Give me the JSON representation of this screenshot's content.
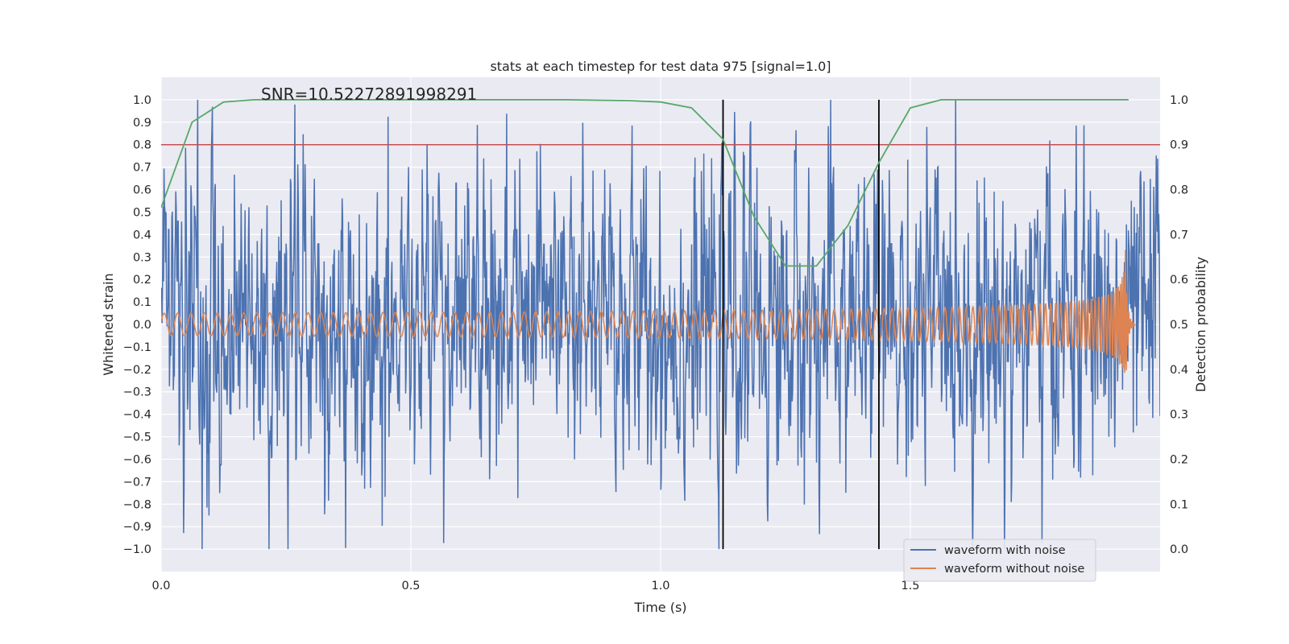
{
  "chart_data": {
    "type": "line",
    "title": "stats at each timestep for test data 975 [signal=1.0]",
    "xlabel": "Time (s)",
    "ylabel_left": "Whitened strain",
    "ylabel_right": "Detection probability",
    "xlim": [
      0.0,
      2.0
    ],
    "ylim_left": [
      -1.1,
      1.1
    ],
    "ylim_right": [
      -0.05,
      1.05
    ],
    "x_ticks": [
      "0.0",
      "0.5",
      "1.0",
      "1.5"
    ],
    "y_left_ticks": [
      "−1.0",
      "−0.9",
      "−0.8",
      "−0.7",
      "−0.6",
      "−0.5",
      "−0.4",
      "−0.3",
      "−0.2",
      "−0.1",
      "0.0",
      "0.1",
      "0.2",
      "0.3",
      "0.4",
      "0.5",
      "0.6",
      "0.7",
      "0.8",
      "0.9",
      "1.0"
    ],
    "y_right_ticks": [
      "0.0",
      "0.1",
      "0.2",
      "0.3",
      "0.4",
      "0.5",
      "0.6",
      "0.7",
      "0.8",
      "0.9",
      "1.0"
    ],
    "annotation": "SNR=10.52272891998291",
    "grid": true,
    "legend_position": "bottom-right",
    "threshold_line": {
      "axis": "right",
      "value": 0.9,
      "color": "#c44e52"
    },
    "vertical_markers": [
      1.125,
      1.437
    ],
    "series": [
      {
        "name": "waveform with noise",
        "axis": "left",
        "color": "#4c72b0",
        "kind": "noise",
        "t_range": [
          0.0,
          2.0
        ],
        "amplitude_range": [
          -1.0,
          1.0
        ],
        "samples": 2048
      },
      {
        "name": "waveform without noise",
        "axis": "left",
        "color": "#dd8452",
        "kind": "chirp",
        "t_range": [
          0.0,
          1.95
        ],
        "start_freq_hz": 37,
        "merger_time": 1.93,
        "peak_amplitude": 0.39,
        "start_amplitude": 0.05
      },
      {
        "name": "",
        "axis": "right",
        "color": "#55a868",
        "x": [
          0.0,
          0.062,
          0.125,
          0.187,
          0.25,
          0.312,
          0.375,
          0.437,
          0.5,
          0.562,
          0.625,
          0.687,
          0.75,
          0.812,
          0.875,
          0.937,
          1.0,
          1.062,
          1.125,
          1.187,
          1.25,
          1.312,
          1.375,
          1.437,
          1.5,
          1.562,
          1.625,
          1.687,
          1.75,
          1.812,
          1.875,
          1.937
        ],
        "y": [
          0.76,
          0.95,
          0.995,
          1.0,
          1.0,
          1.0,
          1.0,
          1.0,
          1.0,
          1.0,
          1.0,
          1.0,
          1.0,
          1.0,
          0.999,
          0.998,
          0.995,
          0.982,
          0.912,
          0.74,
          0.63,
          0.63,
          0.72,
          0.86,
          0.982,
          1.0,
          1.0,
          1.0,
          1.0,
          1.0,
          1.0,
          1.0
        ]
      }
    ]
  }
}
